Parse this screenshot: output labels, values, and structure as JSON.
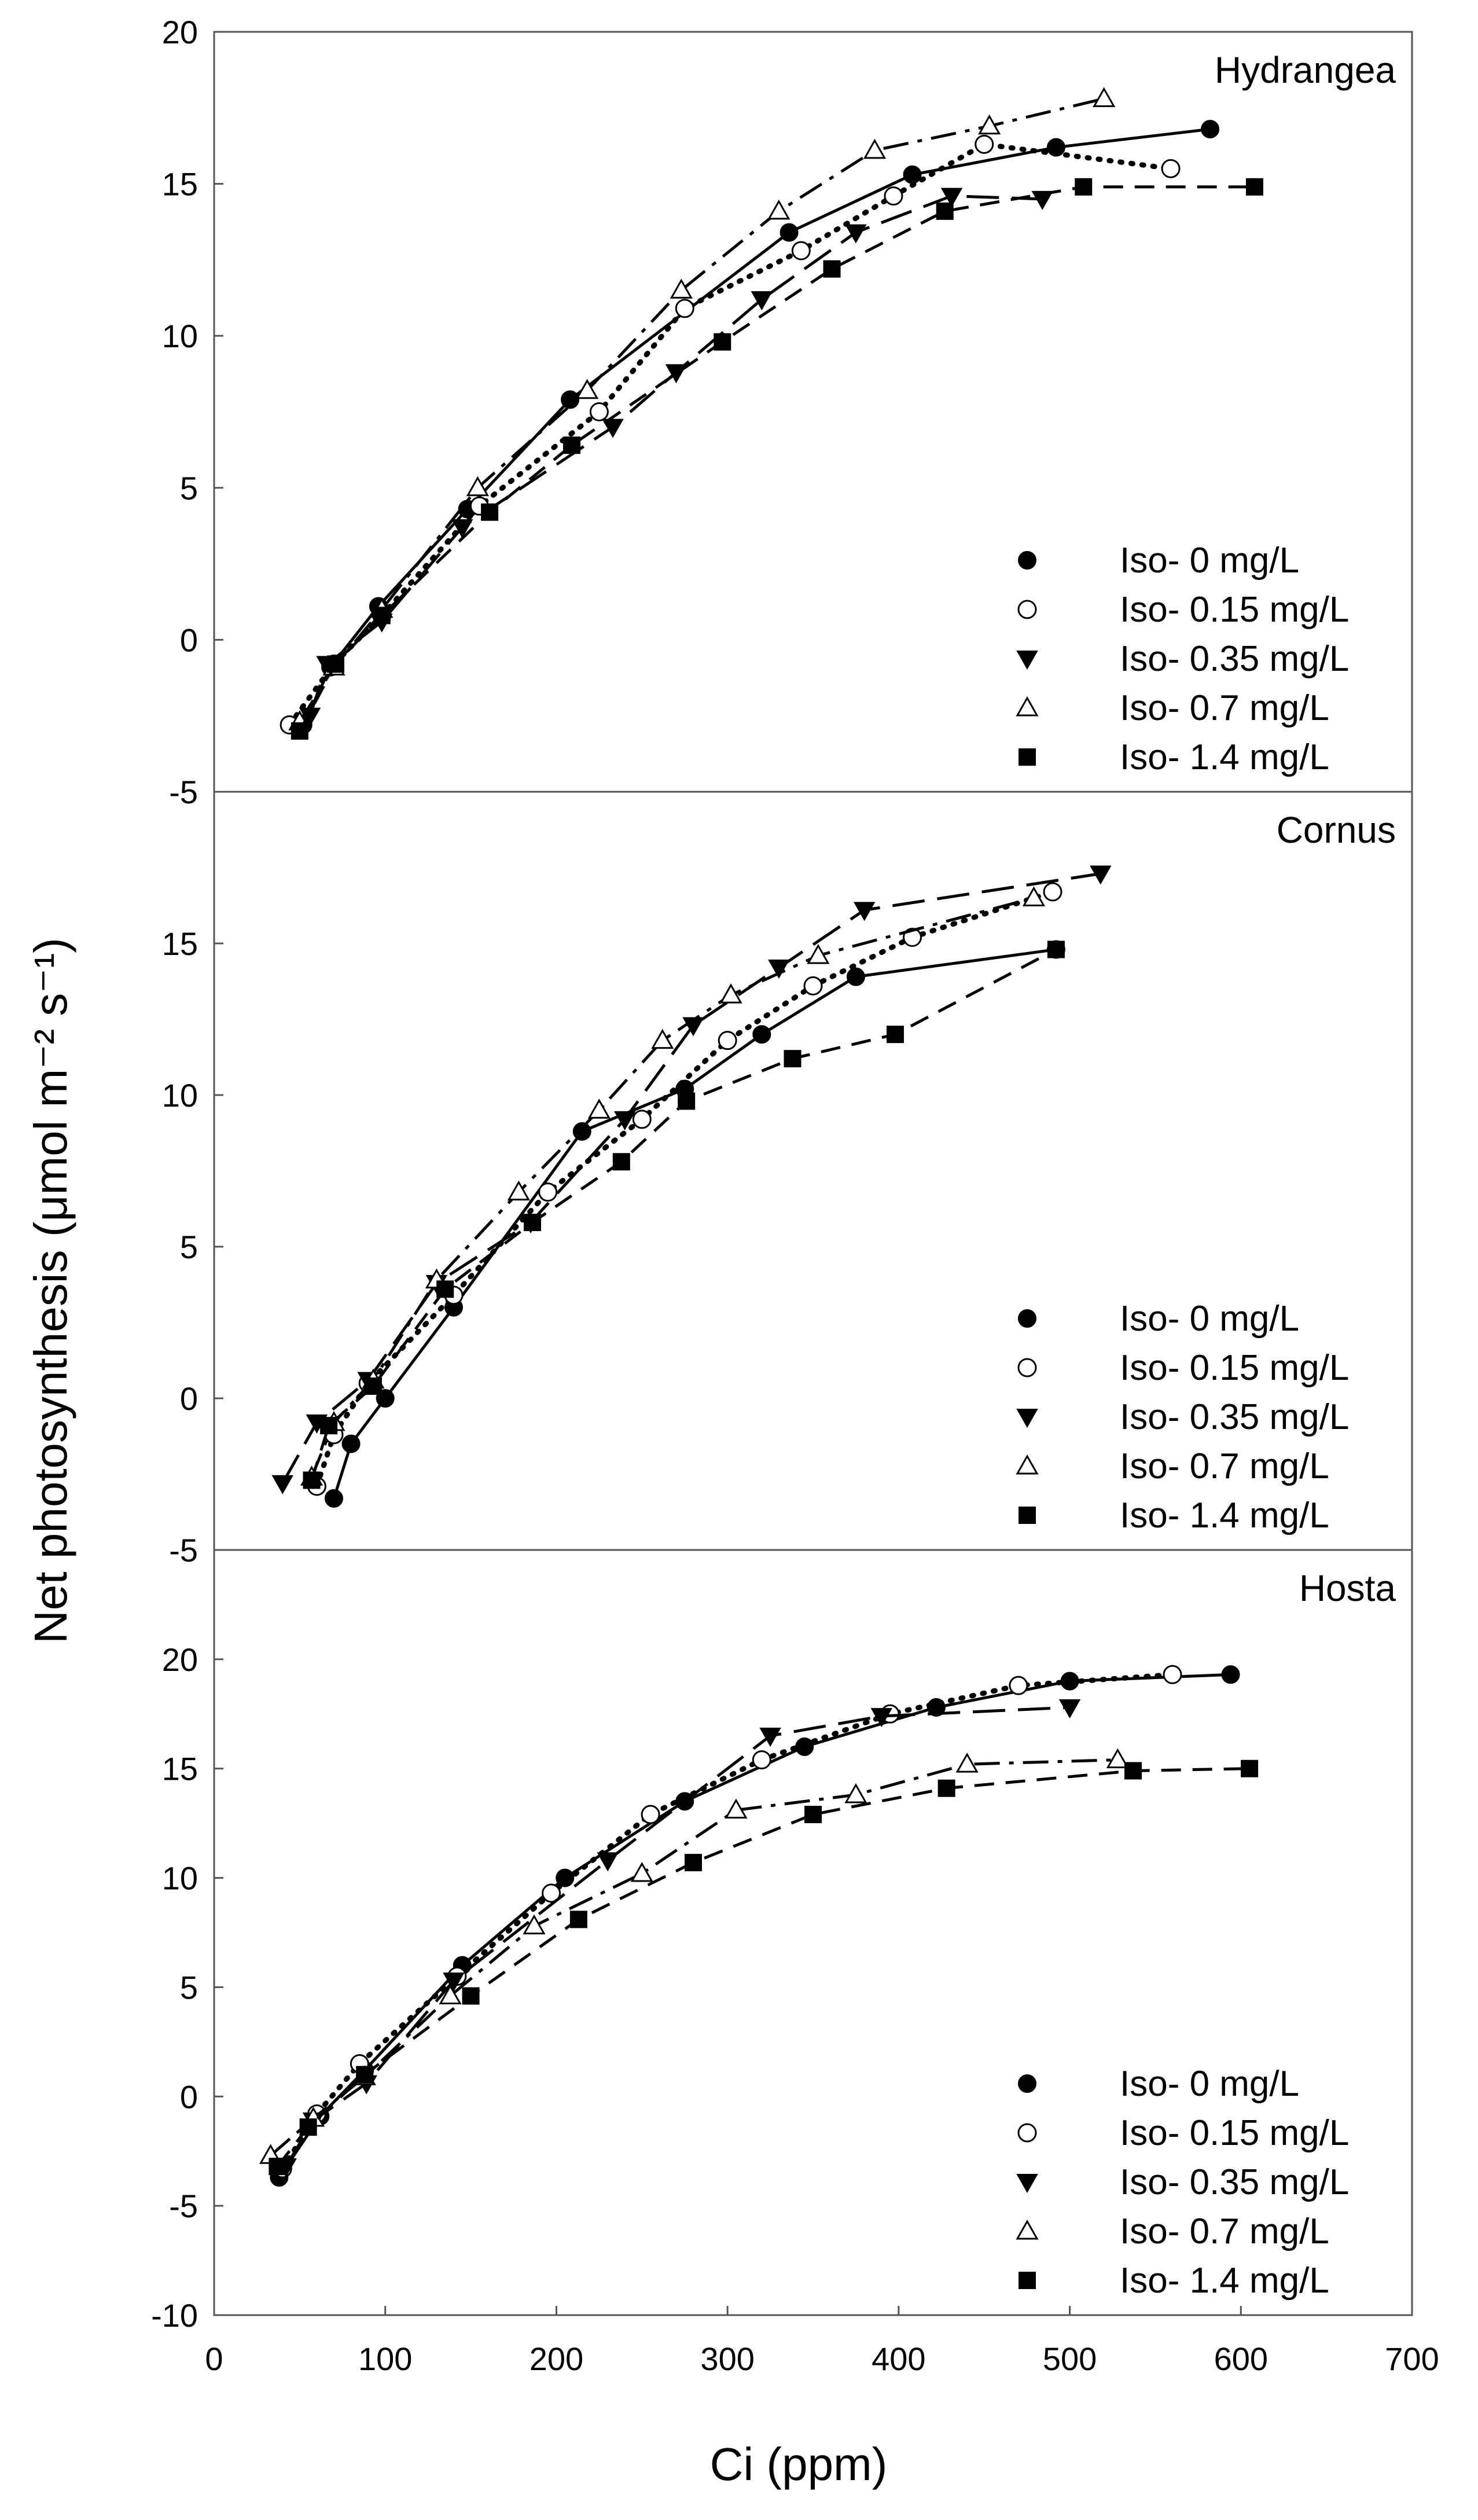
{
  "chart_data": {
    "type": "line",
    "xlabel": "Ci (ppm)",
    "ylabel": "Net photosynthesis (μmol m⁻² s⁻¹)",
    "xlim": [
      0,
      700
    ],
    "xticks": [
      "0",
      "100",
      "200",
      "300",
      "400",
      "500",
      "600",
      "700"
    ],
    "legend": {
      "placement": "bottom-right",
      "entries": [
        "Iso- 0 mg/L",
        "Iso- 0.15 mg/L",
        "Iso- 0.35 mg/L",
        "Iso- 0.7 mg/L",
        "Iso- 1.4 mg/L"
      ]
    },
    "series_styles": [
      {
        "name": "Iso- 0 mg/L",
        "marker": "circle-filled",
        "line": "solid"
      },
      {
        "name": "Iso- 0.15 mg/L",
        "marker": "circle-open",
        "line": "dotted"
      },
      {
        "name": "Iso- 0.35 mg/L",
        "marker": "triangle-down-filled",
        "line": "long-dash"
      },
      {
        "name": "Iso- 0.7 mg/L",
        "marker": "triangle-up-open",
        "line": "dash-dot"
      },
      {
        "name": "Iso- 1.4 mg/L",
        "marker": "square-filled",
        "line": "dash"
      }
    ],
    "panels": [
      {
        "title": "Hydrangea",
        "ylim": [
          -5,
          20
        ],
        "yticks": [
          "-5",
          "0",
          "5",
          "10",
          "15",
          "20"
        ],
        "series": [
          {
            "name": "Iso- 0 mg/L",
            "points": [
              [
                52,
                -2.8
              ],
              [
                68,
                -0.9
              ],
              [
                96,
                1.1
              ],
              [
                148,
                4.3
              ],
              [
                208,
                7.9
              ],
              [
                336,
                13.4
              ],
              [
                408,
                15.3
              ],
              [
                492,
                16.2
              ],
              [
                582,
                16.8
              ]
            ]
          },
          {
            "name": "Iso- 0.15 mg/L",
            "points": [
              [
                44,
                -2.8
              ],
              [
                70,
                -0.8
              ],
              [
                98,
                0.8
              ],
              [
                155,
                4.4
              ],
              [
                225,
                7.5
              ],
              [
                275,
                10.9
              ],
              [
                343,
                12.8
              ],
              [
                397,
                14.6
              ],
              [
                450,
                16.3
              ],
              [
                559,
                15.5
              ]
            ]
          },
          {
            "name": "Iso- 0.35 mg/L",
            "points": [
              [
                56,
                -2.5
              ],
              [
                66,
                -0.8
              ],
              [
                98,
                0.6
              ],
              [
                145,
                3.7
              ],
              [
                233,
                7.0
              ],
              [
                270,
                8.8
              ],
              [
                320,
                11.2
              ],
              [
                375,
                13.4
              ],
              [
                431,
                14.6
              ],
              [
                484,
                14.5
              ]
            ]
          },
          {
            "name": "Iso- 0.7 mg/L",
            "points": [
              [
                50,
                -2.7
              ],
              [
                70,
                -0.9
              ],
              [
                98,
                1.0
              ],
              [
                154,
                5.0
              ],
              [
                218,
                8.2
              ],
              [
                273,
                11.5
              ],
              [
                330,
                14.1
              ],
              [
                386,
                16.1
              ],
              [
                453,
                16.9
              ],
              [
                520,
                17.8
              ]
            ]
          },
          {
            "name": "Iso- 1.4 mg/L",
            "points": [
              [
                50,
                -3.0
              ],
              [
                71,
                -0.8
              ],
              [
                98,
                0.8
              ],
              [
                161,
                4.2
              ],
              [
                209,
                6.4
              ],
              [
                297,
                9.8
              ],
              [
                361,
                12.2
              ],
              [
                427,
                14.1
              ],
              [
                508,
                14.9
              ],
              [
                608,
                14.9
              ]
            ]
          }
        ]
      },
      {
        "title": "Cornus",
        "ylim": [
          -5,
          20
        ],
        "yticks": [
          "-5",
          "0",
          "5",
          "10",
          "15"
        ],
        "series": [
          {
            "name": "Iso- 0 mg/L",
            "points": [
              [
                70,
                -3.3
              ],
              [
                80,
                -1.5
              ],
              [
                100,
                0
              ],
              [
                140,
                3.0
              ],
              [
                215,
                8.8
              ],
              [
                275,
                10.2
              ],
              [
                320,
                12.0
              ],
              [
                375,
                13.9
              ],
              [
                492,
                14.8
              ]
            ]
          },
          {
            "name": "Iso- 0.15 mg/L",
            "points": [
              [
                60,
                -2.9
              ],
              [
                70,
                -1.2
              ],
              [
                90,
                0.5
              ],
              [
                140,
                3.4
              ],
              [
                195,
                6.8
              ],
              [
                250,
                9.2
              ],
              [
                300,
                11.8
              ],
              [
                350,
                13.6
              ],
              [
                408,
                15.2
              ],
              [
                490,
                16.7
              ]
            ]
          },
          {
            "name": "Iso- 0.35 mg/L",
            "points": [
              [
                40,
                -2.8
              ],
              [
                60,
                -0.8
              ],
              [
                90,
                0.6
              ],
              [
                130,
                3.8
              ],
              [
                185,
                5.8
              ],
              [
                240,
                9.2
              ],
              [
                280,
                12.3
              ],
              [
                330,
                14.2
              ],
              [
                380,
                16.1
              ],
              [
                518,
                17.3
              ]
            ]
          },
          {
            "name": "Iso- 0.7 mg/L",
            "points": [
              [
                57,
                -2.6
              ],
              [
                70,
                -0.8
              ],
              [
                93,
                0.6
              ],
              [
                130,
                3.9
              ],
              [
                178,
                6.8
              ],
              [
                225,
                9.5
              ],
              [
                262,
                11.8
              ],
              [
                302,
                13.3
              ],
              [
                353,
                14.6
              ],
              [
                479,
                16.5
              ]
            ]
          },
          {
            "name": "Iso- 1.4 mg/L",
            "points": [
              [
                57,
                -2.7
              ],
              [
                67,
                -0.9
              ],
              [
                93,
                0.4
              ],
              [
                135,
                3.6
              ],
              [
                186,
                5.8
              ],
              [
                238,
                7.8
              ],
              [
                276,
                9.8
              ],
              [
                338,
                11.2
              ],
              [
                398,
                12.0
              ],
              [
                492,
                14.8
              ]
            ]
          }
        ]
      },
      {
        "title": "Hosta",
        "ylim": [
          -10,
          25
        ],
        "yticks": [
          "-10",
          "-5",
          "0",
          "5",
          "10",
          "15",
          "20"
        ],
        "series": [
          {
            "name": "Iso- 0 mg/L",
            "points": [
              [
                38,
                -3.7
              ],
              [
                62,
                -0.9
              ],
              [
                88,
                1.2
              ],
              [
                145,
                6.0
              ],
              [
                205,
                10.0
              ],
              [
                275,
                13.5
              ],
              [
                345,
                16.0
              ],
              [
                422,
                17.8
              ],
              [
                500,
                19.0
              ],
              [
                594,
                19.3
              ]
            ]
          },
          {
            "name": "Iso- 0.15 mg/L",
            "points": [
              [
                40,
                -3.3
              ],
              [
                60,
                -0.8
              ],
              [
                85,
                1.5
              ],
              [
                142,
                5.5
              ],
              [
                197,
                9.3
              ],
              [
                255,
                12.9
              ],
              [
                320,
                15.4
              ],
              [
                395,
                17.5
              ],
              [
                470,
                18.8
              ],
              [
                560,
                19.3
              ]
            ]
          },
          {
            "name": "Iso- 0.35 mg/L",
            "points": [
              [
                42,
                -3.2
              ],
              [
                58,
                -1.1
              ],
              [
                89,
                0.6
              ],
              [
                140,
                5.3
              ],
              [
                230,
                10.8
              ],
              [
                325,
                16.5
              ],
              [
                390,
                17.4
              ],
              [
                500,
                17.8
              ]
            ]
          },
          {
            "name": "Iso- 0.7 mg/L",
            "points": [
              [
                33,
                -2.7
              ],
              [
                58,
                -1.0
              ],
              [
                88,
                0.9
              ],
              [
                138,
                4.6
              ],
              [
                187,
                7.8
              ],
              [
                250,
                10.2
              ],
              [
                305,
                13.1
              ],
              [
                375,
                13.8
              ],
              [
                440,
                15.2
              ],
              [
                528,
                15.4
              ]
            ]
          },
          {
            "name": "Iso- 1.4 mg/L",
            "points": [
              [
                37,
                -3.2
              ],
              [
                55,
                -1.4
              ],
              [
                88,
                1.0
              ],
              [
                150,
                4.6
              ],
              [
                213,
                8.1
              ],
              [
                280,
                10.7
              ],
              [
                350,
                12.9
              ],
              [
                428,
                14.1
              ],
              [
                537,
                14.9
              ],
              [
                605,
                15.0
              ]
            ]
          }
        ]
      }
    ]
  }
}
